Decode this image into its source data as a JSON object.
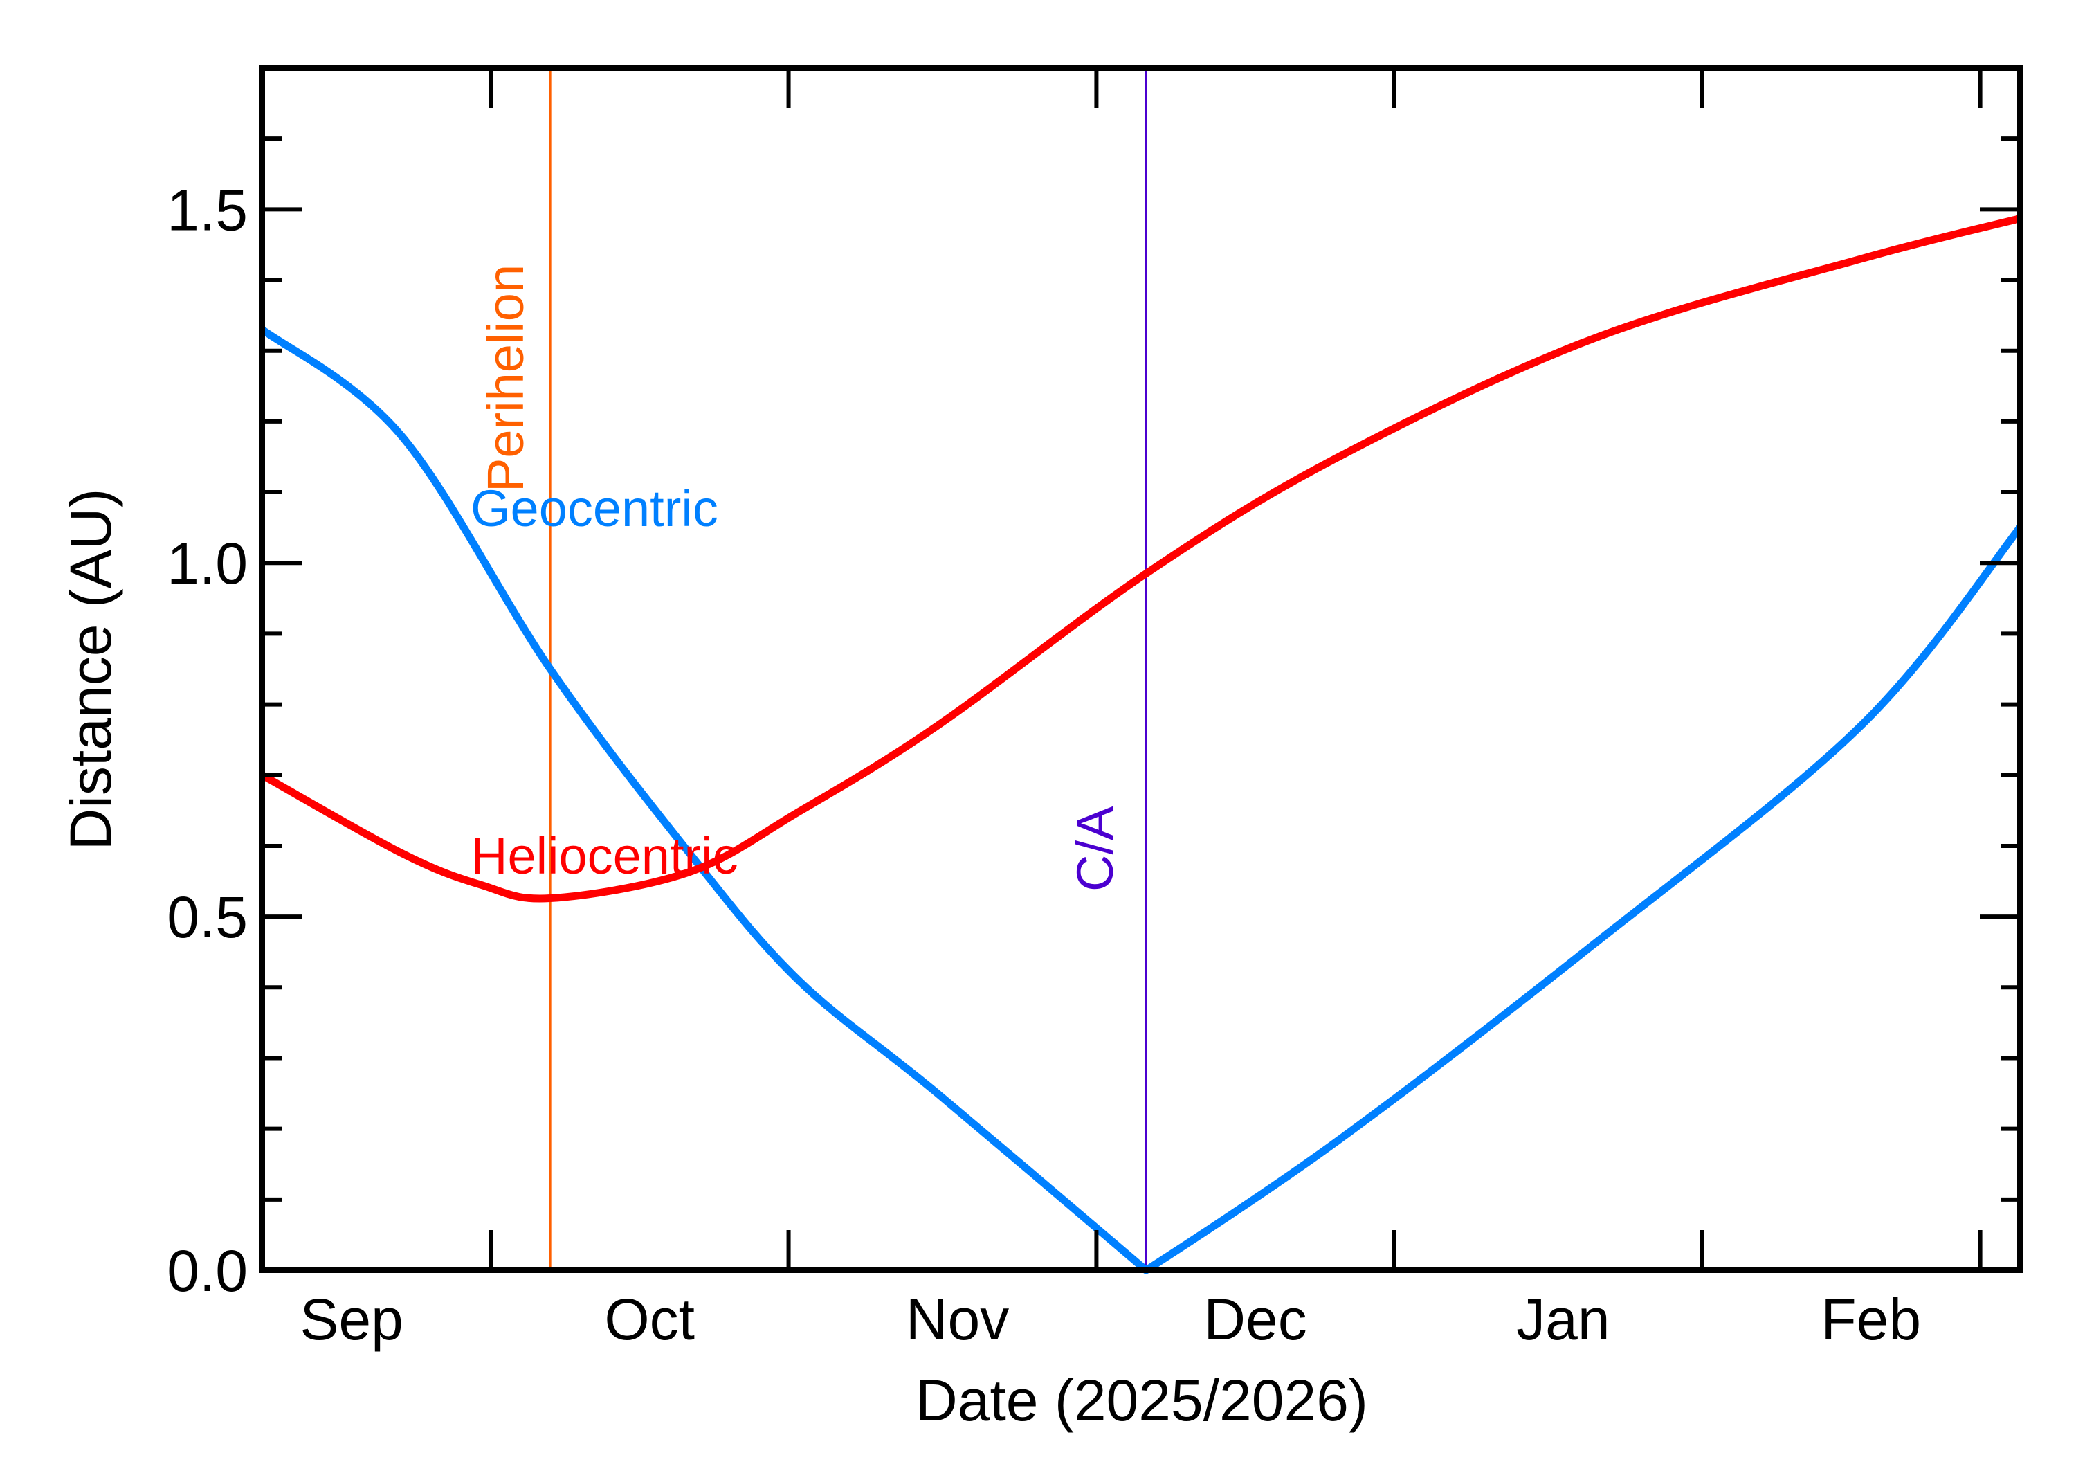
{
  "chart_data": {
    "type": "line",
    "xlabel": "Date (2025/2026)",
    "ylabel": "Distance (AU)",
    "xlim": [
      "2025-08-23",
      "2026-02-16"
    ],
    "ylim": [
      0,
      1.7
    ],
    "grid": false,
    "x_tick_labels": [
      {
        "label": "Sep",
        "date": "2025-09-01"
      },
      {
        "label": "Oct",
        "date": "2025-10-01"
      },
      {
        "label": "Nov",
        "date": "2025-11-01"
      },
      {
        "label": "Dec",
        "date": "2025-12-01"
      },
      {
        "label": "Jan",
        "date": "2026-01-01"
      },
      {
        "label": "Feb",
        "date": "2026-02-01"
      }
    ],
    "x_tick_marks": [
      "2025-09-15",
      "2025-10-15",
      "2025-11-15",
      "2025-12-15",
      "2026-01-15",
      "2026-02-12"
    ],
    "y_ticks": [
      {
        "value": 0.0,
        "label": "0.0"
      },
      {
        "value": 0.5,
        "label": "0.5"
      },
      {
        "value": 1.0,
        "label": "1.0"
      },
      {
        "value": 1.5,
        "label": "1.5"
      }
    ],
    "y_minor_step": 0.1,
    "series": [
      {
        "name": "Geocentric",
        "color": "#0080ff",
        "x": [
          "2025-08-23",
          "2025-09-06",
          "2025-09-21",
          "2025-10-05",
          "2025-10-16",
          "2025-10-30",
          "2025-11-20",
          "2025-12-09",
          "2026-01-04",
          "2026-01-31",
          "2026-02-16"
        ],
        "y": [
          1.33,
          1.18,
          0.85,
          0.59,
          0.41,
          0.25,
          0.0,
          0.18,
          0.46,
          0.77,
          1.05
        ]
      },
      {
        "name": "Heliocentric",
        "color": "#ff0000",
        "x": [
          "2025-08-23",
          "2025-09-06",
          "2025-09-14",
          "2025-09-21",
          "2025-10-05",
          "2025-10-16",
          "2025-10-30",
          "2025-11-20",
          "2025-12-09",
          "2026-01-04",
          "2026-01-31",
          "2026-02-16"
        ],
        "y": [
          0.7,
          0.59,
          0.545,
          0.526,
          0.563,
          0.648,
          0.77,
          0.985,
          1.147,
          1.317,
          1.43,
          1.487
        ]
      }
    ],
    "vertical_markers": [
      {
        "label": "Perihelion",
        "date": "2025-09-21",
        "color": "#ff6000"
      },
      {
        "label": "C/A",
        "date": "2025-11-20",
        "color": "#4b00d0"
      }
    ]
  }
}
